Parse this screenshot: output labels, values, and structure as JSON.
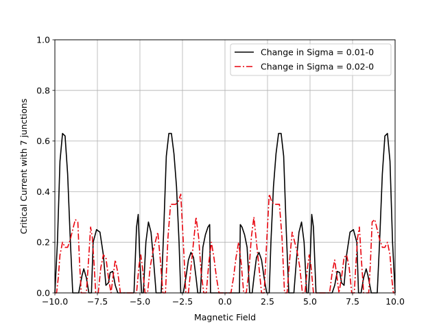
{
  "chart_data": {
    "type": "line",
    "title": "",
    "xlabel": "Magnetic Field",
    "ylabel": "Critical Current with 7 junctions",
    "xlim": [
      -10.0,
      10.0
    ],
    "ylim": [
      0.0,
      1.0
    ],
    "xticks": [
      -10.0,
      -7.5,
      -5.0,
      -2.5,
      0.0,
      2.5,
      5.0,
      7.5,
      10.0
    ],
    "xtick_labels": [
      "−10.0",
      "−7.5",
      "−5.0",
      "−2.5",
      "0.0",
      "2.5",
      "5.0",
      "7.5",
      "10.0"
    ],
    "yticks": [
      0.0,
      0.2,
      0.4,
      0.6,
      0.8,
      1.0
    ],
    "ytick_labels": [
      "0.0",
      "0.2",
      "0.4",
      "0.6",
      "0.8",
      "1.0"
    ],
    "grid": true,
    "legend_position": "upper right",
    "series": [
      {
        "name": "Change in Sigma = 0.01-0",
        "color": "#000000",
        "style": "solid",
        "x": [
          -10.0,
          -9.85,
          -9.7,
          -9.55,
          -9.4,
          -9.25,
          -9.1,
          -8.95,
          -8.8,
          -8.6,
          -8.4,
          -8.3,
          -8.15,
          -8.0,
          -7.85,
          -7.75,
          -7.55,
          -7.35,
          -7.15,
          -7.0,
          -6.85,
          -6.75,
          -6.6,
          -6.45,
          -6.3,
          -6.2,
          -6.0,
          -5.8,
          -5.6,
          -5.35,
          -5.2,
          -5.1,
          -5.0,
          -4.9,
          -4.8,
          -4.65,
          -4.5,
          -4.35,
          -4.2,
          -4.05,
          -3.9,
          -3.75,
          -3.6,
          -3.45,
          -3.3,
          -3.15,
          -3.0,
          -2.85,
          -2.7,
          -2.6,
          -2.45,
          -2.3,
          -2.15,
          -2.0,
          -1.85,
          -1.7,
          -1.6,
          -1.45,
          -1.3,
          -1.15,
          -1.0,
          -0.9,
          -0.85,
          -0.8,
          -0.6,
          -0.4,
          -0.2,
          0.0,
          0.2,
          0.4,
          0.6,
          0.8,
          0.85,
          0.9,
          1.0,
          1.15,
          1.3,
          1.45,
          1.6,
          1.7,
          1.85,
          2.0,
          2.15,
          2.3,
          2.45,
          2.6,
          2.7,
          2.85,
          3.0,
          3.15,
          3.3,
          3.45,
          3.6,
          3.75,
          3.9,
          4.05,
          4.2,
          4.35,
          4.5,
          4.65,
          4.8,
          4.9,
          5.0,
          5.1,
          5.2,
          5.35,
          5.6,
          5.8,
          6.0,
          6.2,
          6.3,
          6.45,
          6.6,
          6.75,
          6.85,
          7.0,
          7.15,
          7.35,
          7.55,
          7.75,
          7.85,
          8.0,
          8.15,
          8.3,
          8.4,
          8.6,
          8.8,
          8.95,
          9.1,
          9.25,
          9.4,
          9.55,
          9.7,
          9.85,
          10.0
        ],
        "y": [
          0.0,
          0.2,
          0.52,
          0.63,
          0.62,
          0.47,
          0.22,
          0.0,
          0.0,
          0.0,
          0.07,
          0.095,
          0.06,
          0.0,
          0.0,
          0.2,
          0.25,
          0.24,
          0.15,
          0.03,
          0.04,
          0.08,
          0.085,
          0.03,
          0.0,
          0.0,
          0.0,
          0.0,
          0.0,
          0.0,
          0.26,
          0.31,
          0.12,
          0.0,
          0.0,
          0.2,
          0.28,
          0.24,
          0.13,
          0.0,
          0.0,
          0.0,
          0.25,
          0.54,
          0.63,
          0.63,
          0.55,
          0.42,
          0.2,
          0.0,
          0.0,
          0.06,
          0.13,
          0.16,
          0.14,
          0.06,
          0.0,
          0.0,
          0.18,
          0.23,
          0.26,
          0.27,
          0.0,
          0.0,
          0.0,
          0.0,
          0.0,
          0.0,
          0.0,
          0.0,
          0.0,
          0.0,
          0.0,
          0.27,
          0.26,
          0.23,
          0.18,
          0.0,
          0.0,
          0.06,
          0.14,
          0.16,
          0.13,
          0.06,
          0.0,
          0.0,
          0.2,
          0.42,
          0.55,
          0.63,
          0.63,
          0.54,
          0.25,
          0.0,
          0.0,
          0.0,
          0.13,
          0.24,
          0.28,
          0.2,
          0.0,
          0.0,
          0.12,
          0.31,
          0.26,
          0.0,
          0.0,
          0.0,
          0.0,
          0.0,
          0.0,
          0.03,
          0.085,
          0.08,
          0.04,
          0.03,
          0.15,
          0.24,
          0.25,
          0.2,
          0.0,
          0.0,
          0.06,
          0.095,
          0.07,
          0.0,
          0.0,
          0.0,
          0.22,
          0.47,
          0.62,
          0.63,
          0.52,
          0.2,
          0.0
        ]
      },
      {
        "name": "Change in Sigma = 0.02-0",
        "color": "#e8000b",
        "style": "dashdot",
        "x": [
          -10.0,
          -9.9,
          -9.8,
          -9.7,
          -9.55,
          -9.4,
          -9.25,
          -9.1,
          -8.95,
          -8.8,
          -8.65,
          -8.55,
          -8.45,
          -8.3,
          -8.15,
          -8.0,
          -7.9,
          -7.8,
          -7.7,
          -7.6,
          -7.45,
          -7.3,
          -7.15,
          -7.0,
          -6.85,
          -6.7,
          -6.55,
          -6.45,
          -6.3,
          -6.15,
          -6.0,
          -5.8,
          -5.5,
          -5.2,
          -5.05,
          -4.95,
          -4.85,
          -4.7,
          -4.55,
          -4.4,
          -4.25,
          -4.1,
          -3.95,
          -3.8,
          -3.65,
          -3.5,
          -3.35,
          -3.2,
          -3.05,
          -2.9,
          -2.75,
          -2.6,
          -2.45,
          -2.3,
          -2.15,
          -2.0,
          -1.85,
          -1.7,
          -1.55,
          -1.4,
          -1.25,
          -1.1,
          -0.95,
          -0.8,
          -0.65,
          -0.5,
          -0.35,
          -0.2,
          0.0,
          0.2,
          0.35,
          0.5,
          0.65,
          0.8,
          0.95,
          1.1,
          1.25,
          1.4,
          1.55,
          1.7,
          1.85,
          2.0,
          2.15,
          2.3,
          2.45,
          2.6,
          2.75,
          2.9,
          3.05,
          3.2,
          3.35,
          3.5,
          3.65,
          3.8,
          3.95,
          4.1,
          4.25,
          4.4,
          4.55,
          4.7,
          4.85,
          4.95,
          5.05,
          5.2,
          5.5,
          5.8,
          6.0,
          6.15,
          6.3,
          6.45,
          6.55,
          6.7,
          6.85,
          7.0,
          7.15,
          7.3,
          7.45,
          7.6,
          7.7,
          7.8,
          7.9,
          8.0,
          8.15,
          8.3,
          8.45,
          8.55,
          8.65,
          8.8,
          8.95,
          9.1,
          9.25,
          9.4,
          9.55,
          9.7,
          9.8,
          9.9,
          10.0
        ],
        "y": [
          0.0,
          0.0,
          0.06,
          0.15,
          0.2,
          0.18,
          0.18,
          0.21,
          0.25,
          0.29,
          0.28,
          0.12,
          0.0,
          0.0,
          0.0,
          0.15,
          0.26,
          0.22,
          0.12,
          0.0,
          0.0,
          0.1,
          0.15,
          0.14,
          0.06,
          0.0,
          0.08,
          0.13,
          0.08,
          0.0,
          0.0,
          0.0,
          0.0,
          0.0,
          0.11,
          0.15,
          0.1,
          0.0,
          0.0,
          0.1,
          0.16,
          0.2,
          0.24,
          0.13,
          0.0,
          0.0,
          0.22,
          0.35,
          0.35,
          0.35,
          0.36,
          0.39,
          0.2,
          0.0,
          0.0,
          0.1,
          0.2,
          0.3,
          0.22,
          0.08,
          0.0,
          0.0,
          0.12,
          0.2,
          0.14,
          0.06,
          0.0,
          0.0,
          0.0,
          0.0,
          0.0,
          0.06,
          0.14,
          0.2,
          0.12,
          0.0,
          0.0,
          0.08,
          0.22,
          0.3,
          0.2,
          0.1,
          0.0,
          0.0,
          0.2,
          0.39,
          0.36,
          0.35,
          0.35,
          0.35,
          0.22,
          0.0,
          0.0,
          0.13,
          0.24,
          0.2,
          0.16,
          0.1,
          0.0,
          0.0,
          0.1,
          0.15,
          0.11,
          0.0,
          0.0,
          0.0,
          0.0,
          0.0,
          0.08,
          0.13,
          0.08,
          0.0,
          0.06,
          0.14,
          0.15,
          0.1,
          0.0,
          0.0,
          0.12,
          0.22,
          0.26,
          0.15,
          0.0,
          0.0,
          0.0,
          0.12,
          0.28,
          0.29,
          0.25,
          0.21,
          0.18,
          0.18,
          0.2,
          0.15,
          0.06,
          0.0,
          0.0
        ]
      }
    ]
  }
}
